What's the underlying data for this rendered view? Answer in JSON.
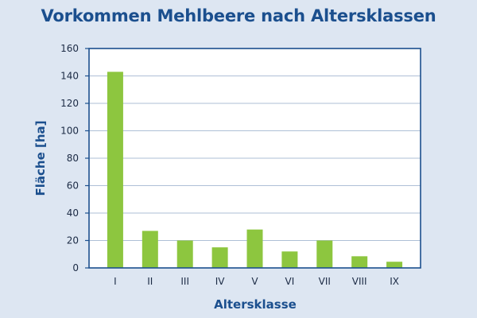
{
  "chart_data": {
    "type": "bar",
    "title": "Vorkommen Mehlbeere nach Altersklassen",
    "xlabel": "Altersklasse",
    "ylabel": "Fläche [ha]",
    "categories": [
      "I",
      "II",
      "III",
      "IV",
      "V",
      "VI",
      "VII",
      "VIII",
      "IX"
    ],
    "values": [
      143,
      27,
      20,
      15,
      28,
      12,
      20,
      8.5,
      4.5
    ],
    "ylim": [
      0,
      160
    ],
    "yticks": [
      0,
      20,
      40,
      60,
      80,
      100,
      120,
      140,
      160
    ],
    "grid": true,
    "colors": {
      "bar": "#8dc63f",
      "grid": "#aebfd6",
      "frame": "#1b4f8e",
      "plot_background": "#ffffff",
      "page_background": "#dde6f2",
      "title": "#1b4f8e"
    }
  }
}
